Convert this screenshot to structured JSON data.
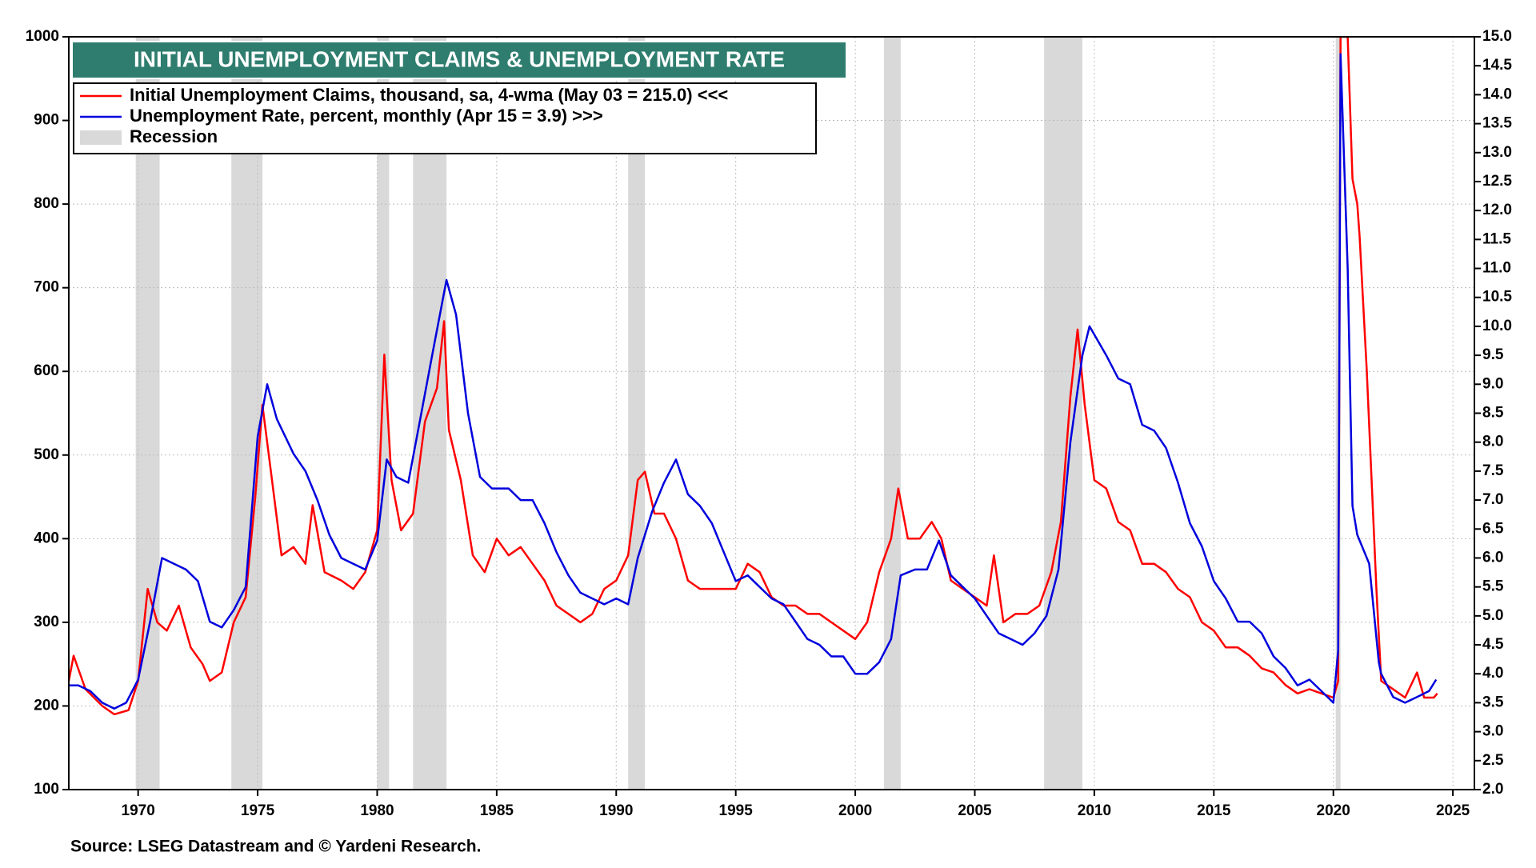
{
  "chart_data": {
    "type": "line",
    "title": "INITIAL UNEMPLOYMENT CLAIMS & UNEMPLOYMENT RATE",
    "source": "Source: LSEG Datastream and © Yardeni Research.",
    "recession_label": "Recession",
    "recession_color": "#d9d9d9",
    "recessions": [
      [
        1969.9,
        1970.9
      ],
      [
        1973.9,
        1975.2
      ],
      [
        1980.0,
        1980.5
      ],
      [
        1981.5,
        1982.9
      ],
      [
        1990.5,
        1991.2
      ],
      [
        2001.2,
        2001.9
      ],
      [
        2007.9,
        2009.5
      ],
      [
        2020.1,
        2020.3
      ]
    ],
    "xlim": [
      1967.1,
      2025.9
    ],
    "xticks": [
      1970,
      1975,
      1980,
      1985,
      1990,
      1995,
      2000,
      2005,
      2010,
      2015,
      2020,
      2025
    ],
    "ylim": [
      100,
      1000
    ],
    "yticks": [
      100,
      200,
      300,
      400,
      500,
      600,
      700,
      800,
      900,
      1000
    ],
    "y2lim": [
      2.0,
      15.0
    ],
    "y2ticks": [
      {
        "value": 2,
        "label": "2.0"
      },
      2.5,
      {
        "value": 3,
        "label": "3.0"
      },
      3.5,
      {
        "value": 4,
        "label": "4.0"
      },
      4.5,
      {
        "value": 5,
        "label": "5.0"
      },
      5.5,
      {
        "value": 6,
        "label": "6.0"
      },
      6.5,
      {
        "value": 7,
        "label": "7.0"
      },
      7.5,
      {
        "value": 8,
        "label": "8.0"
      },
      8.5,
      {
        "value": 9,
        "label": "9.0"
      },
      9.5,
      {
        "value": 10,
        "label": "10.0"
      },
      10.5,
      {
        "value": 11,
        "label": "11.0"
      },
      11.5,
      {
        "value": 12,
        "label": "12.0"
      },
      12.5,
      {
        "value": 13,
        "label": "13.0"
      },
      13.5,
      {
        "value": 14,
        "label": "14.0"
      },
      14.5,
      {
        "value": 15,
        "label": "15.0"
      }
    ],
    "grid": true,
    "series": [
      {
        "name": "Initial Unemployment Claims, thousand,  sa, 4-wma (May 03 = 215.0) <<<",
        "color": "#ff0000",
        "axis": "y",
        "x": [
          1967.1,
          1967.3,
          1967.8,
          1968.5,
          1969.0,
          1969.6,
          1970.0,
          1970.4,
          1970.8,
          1971.2,
          1971.7,
          1972.2,
          1972.7,
          1973.0,
          1973.5,
          1974.0,
          1974.5,
          1974.9,
          1975.2,
          1975.6,
          1976.0,
          1976.5,
          1977.0,
          1977.3,
          1977.8,
          1978.5,
          1979.0,
          1979.5,
          1980.0,
          1980.3,
          1980.6,
          1981.0,
          1981.5,
          1982.0,
          1982.5,
          1982.8,
          1983.0,
          1983.5,
          1984.0,
          1984.5,
          1985.0,
          1985.5,
          1986.0,
          1986.5,
          1987.0,
          1987.5,
          1988.0,
          1988.5,
          1989.0,
          1989.5,
          1990.0,
          1990.5,
          1990.9,
          1991.2,
          1991.6,
          1992.0,
          1992.5,
          1993.0,
          1993.5,
          1994.0,
          1994.5,
          1995.0,
          1995.5,
          1996.0,
          1996.5,
          1997.0,
          1997.5,
          1998.0,
          1998.5,
          1999.0,
          1999.5,
          2000.0,
          2000.5,
          2001.0,
          2001.5,
          2001.8,
          2002.2,
          2002.7,
          2003.2,
          2003.6,
          2004.0,
          2004.5,
          2005.0,
          2005.5,
          2005.8,
          2006.2,
          2006.7,
          2007.2,
          2007.7,
          2008.2,
          2008.6,
          2009.0,
          2009.3,
          2009.6,
          2010.0,
          2010.5,
          2011.0,
          2011.5,
          2012.0,
          2012.5,
          2013.0,
          2013.5,
          2014.0,
          2014.5,
          2015.0,
          2015.5,
          2016.0,
          2016.5,
          2017.0,
          2017.5,
          2018.0,
          2018.5,
          2019.0,
          2019.5,
          2020.0,
          2020.2,
          2020.3,
          2020.6,
          2020.8,
          2021.0,
          2021.1,
          2021.4,
          2021.8,
          2022.0,
          2022.5,
          2023.0,
          2023.5,
          2023.8,
          2024.2,
          2024.35
        ],
        "values": [
          230,
          260,
          220,
          200,
          190,
          195,
          230,
          340,
          300,
          290,
          320,
          270,
          250,
          230,
          240,
          300,
          330,
          450,
          560,
          470,
          380,
          390,
          370,
          440,
          360,
          350,
          340,
          360,
          410,
          620,
          470,
          410,
          430,
          540,
          580,
          660,
          530,
          470,
          380,
          360,
          400,
          380,
          390,
          370,
          350,
          320,
          310,
          300,
          310,
          340,
          350,
          380,
          470,
          480,
          430,
          430,
          400,
          350,
          340,
          340,
          340,
          340,
          370,
          360,
          330,
          320,
          320,
          310,
          310,
          300,
          290,
          280,
          300,
          360,
          400,
          460,
          400,
          400,
          420,
          400,
          350,
          340,
          330,
          320,
          380,
          300,
          310,
          310,
          320,
          360,
          420,
          570,
          650,
          560,
          470,
          460,
          420,
          410,
          370,
          370,
          360,
          340,
          330,
          300,
          290,
          270,
          270,
          260,
          245,
          240,
          225,
          215,
          220,
          215,
          210,
          230,
          1000,
          1000,
          830,
          800,
          760,
          600,
          340,
          230,
          220,
          210,
          240,
          210,
          210,
          215
        ]
      },
      {
        "name": "Unemployment Rate, percent, monthly (Apr 15 = 3.9) >>>",
        "color": "#0000dd",
        "axis": "y2",
        "x": [
          1967.1,
          1967.5,
          1968.0,
          1968.5,
          1969.0,
          1969.5,
          1970.0,
          1970.5,
          1971.0,
          1971.5,
          1972.0,
          1972.5,
          1973.0,
          1973.5,
          1974.0,
          1974.5,
          1975.0,
          1975.4,
          1975.8,
          1976.5,
          1977.0,
          1977.5,
          1978.0,
          1978.5,
          1979.0,
          1979.5,
          1980.0,
          1980.4,
          1980.8,
          1981.3,
          1981.8,
          1982.3,
          1982.9,
          1983.3,
          1983.8,
          1984.3,
          1984.8,
          1985.5,
          1986.0,
          1986.5,
          1987.0,
          1987.5,
          1988.0,
          1988.5,
          1989.0,
          1989.5,
          1990.0,
          1990.5,
          1990.9,
          1991.5,
          1992.0,
          1992.5,
          1993.0,
          1993.5,
          1994.0,
          1994.5,
          1995.0,
          1995.5,
          1996.0,
          1996.5,
          1997.0,
          1997.5,
          1998.0,
          1998.5,
          1999.0,
          1999.5,
          2000.0,
          2000.5,
          2001.0,
          2001.5,
          2001.9,
          2002.5,
          2003.0,
          2003.5,
          2004.0,
          2004.5,
          2005.0,
          2005.5,
          2006.0,
          2006.5,
          2007.0,
          2007.5,
          2008.0,
          2008.5,
          2009.0,
          2009.5,
          2009.8,
          2010.5,
          2011.0,
          2011.5,
          2012.0,
          2012.5,
          2013.0,
          2013.5,
          2014.0,
          2014.5,
          2015.0,
          2015.5,
          2016.0,
          2016.5,
          2017.0,
          2017.5,
          2018.0,
          2018.5,
          2019.0,
          2019.5,
          2020.0,
          2020.2,
          2020.3,
          2020.6,
          2020.8,
          2021.0,
          2021.5,
          2021.9,
          2022.0,
          2022.5,
          2023.0,
          2023.5,
          2024.0,
          2024.3
        ],
        "values": [
          3.8,
          3.8,
          3.7,
          3.5,
          3.4,
          3.5,
          3.9,
          4.9,
          6.0,
          5.9,
          5.8,
          5.6,
          4.9,
          4.8,
          5.1,
          5.5,
          8.1,
          9.0,
          8.4,
          7.8,
          7.5,
          7.0,
          6.4,
          6.0,
          5.9,
          5.8,
          6.3,
          7.7,
          7.4,
          7.3,
          8.4,
          9.5,
          10.8,
          10.2,
          8.5,
          7.4,
          7.2,
          7.2,
          7.0,
          7.0,
          6.6,
          6.1,
          5.7,
          5.4,
          5.3,
          5.2,
          5.3,
          5.2,
          6.0,
          6.8,
          7.3,
          7.7,
          7.1,
          6.9,
          6.6,
          6.1,
          5.6,
          5.7,
          5.5,
          5.3,
          5.2,
          4.9,
          4.6,
          4.5,
          4.3,
          4.3,
          4.0,
          4.0,
          4.2,
          4.6,
          5.7,
          5.8,
          5.8,
          6.3,
          5.7,
          5.5,
          5.3,
          5.0,
          4.7,
          4.6,
          4.5,
          4.7,
          5.0,
          5.8,
          8.0,
          9.5,
          10.0,
          9.5,
          9.1,
          9.0,
          8.3,
          8.2,
          7.9,
          7.3,
          6.6,
          6.2,
          5.6,
          5.3,
          4.9,
          4.9,
          4.7,
          4.3,
          4.1,
          3.8,
          3.9,
          3.7,
          3.5,
          4.4,
          14.7,
          11.0,
          6.9,
          6.4,
          5.9,
          4.2,
          4.0,
          3.6,
          3.5,
          3.6,
          3.7,
          3.9
        ]
      }
    ]
  }
}
